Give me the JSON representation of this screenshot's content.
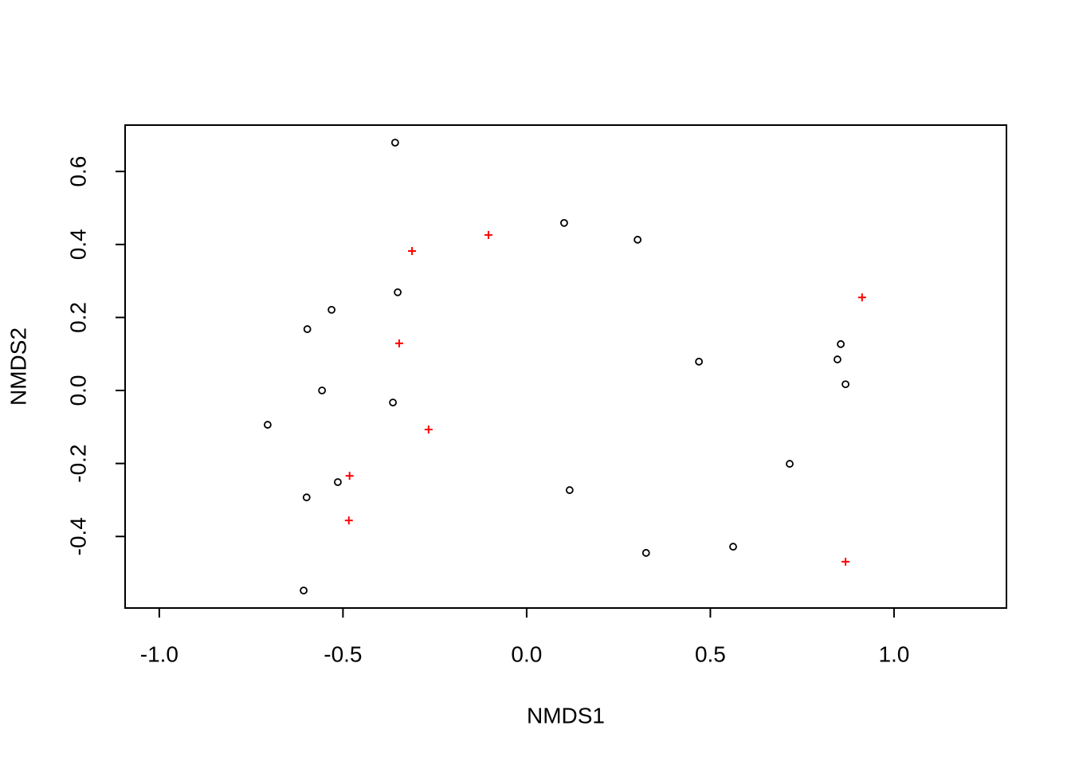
{
  "chart_data": {
    "type": "scatter",
    "xlabel": "NMDS1",
    "ylabel": "NMDS2",
    "xlim": [
      -1.093,
      1.306
    ],
    "ylim": [
      -0.596,
      0.727
    ],
    "xticks": [
      {
        "value": -1,
        "label": "-1.0"
      },
      {
        "value": -0.5,
        "label": "-0.5"
      },
      {
        "value": 0,
        "label": "0.0"
      },
      {
        "value": 0.5,
        "label": "0.5"
      },
      {
        "value": 1,
        "label": "1.0"
      }
    ],
    "yticks": [
      -0.4,
      -0.2,
      {
        "value": 0,
        "label": "0.0"
      },
      0.2,
      0.4,
      0.6
    ],
    "series": [
      {
        "color": "#000000",
        "marker": "circle",
        "x": [
          -0.358,
          0.102,
          0.302,
          -0.351,
          -0.531,
          -0.597,
          0.469,
          0.855,
          0.846,
          0.868,
          -0.557,
          -0.364,
          -0.705,
          0.716,
          0.117,
          -0.514,
          -0.599,
          0.325,
          0.562,
          -0.607
        ],
        "y": [
          0.679,
          0.459,
          0.413,
          0.269,
          0.221,
          0.168,
          0.079,
          0.127,
          0.085,
          0.017,
          0.0,
          -0.033,
          -0.094,
          -0.201,
          -0.273,
          -0.251,
          -0.293,
          -0.445,
          -0.428,
          -0.548
        ]
      },
      {
        "color": "#ff0000",
        "marker": "plus",
        "x": [
          -0.312,
          -0.104,
          0.913,
          -0.347,
          -0.267,
          -0.482,
          -0.484,
          0.868
        ],
        "y": [
          0.382,
          0.426,
          0.255,
          0.129,
          -0.107,
          -0.234,
          -0.356,
          -0.469
        ]
      }
    ]
  }
}
